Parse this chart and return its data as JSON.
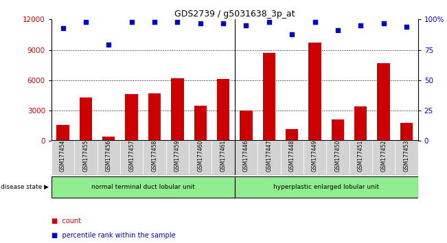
{
  "title": "GDS2739 / g5031638_3p_at",
  "categories": [
    "GSM177454",
    "GSM177455",
    "GSM177456",
    "GSM177457",
    "GSM177458",
    "GSM177459",
    "GSM177460",
    "GSM177461",
    "GSM177446",
    "GSM177447",
    "GSM177448",
    "GSM177449",
    "GSM177450",
    "GSM177451",
    "GSM177452",
    "GSM177453"
  ],
  "counts": [
    1600,
    4300,
    400,
    4600,
    4700,
    6200,
    3500,
    6100,
    3000,
    8700,
    1200,
    9700,
    2100,
    3400,
    7700,
    1800
  ],
  "percentiles": [
    93,
    98,
    79,
    98,
    98,
    98,
    97,
    97,
    95,
    98,
    88,
    98,
    91,
    95,
    97,
    94
  ],
  "groups": [
    {
      "label": "normal terminal duct lobular unit",
      "start": 0,
      "end": 8,
      "color": "#90ee90"
    },
    {
      "label": "hyperplastic enlarged lobular unit",
      "start": 8,
      "end": 16,
      "color": "#90ee90"
    }
  ],
  "bar_color": "#cc0000",
  "dot_color": "#0000cc",
  "ylim_left": [
    0,
    12000
  ],
  "ylim_right": [
    0,
    100
  ],
  "yticks_left": [
    0,
    3000,
    6000,
    9000,
    12000
  ],
  "yticks_right": [
    0,
    25,
    50,
    75,
    100
  ],
  "grid_color": "#000000",
  "tick_label_area_color": "#d3d3d3",
  "legend_labels": [
    "count",
    "percentile rank within the sample"
  ],
  "disease_state_label": "disease state"
}
